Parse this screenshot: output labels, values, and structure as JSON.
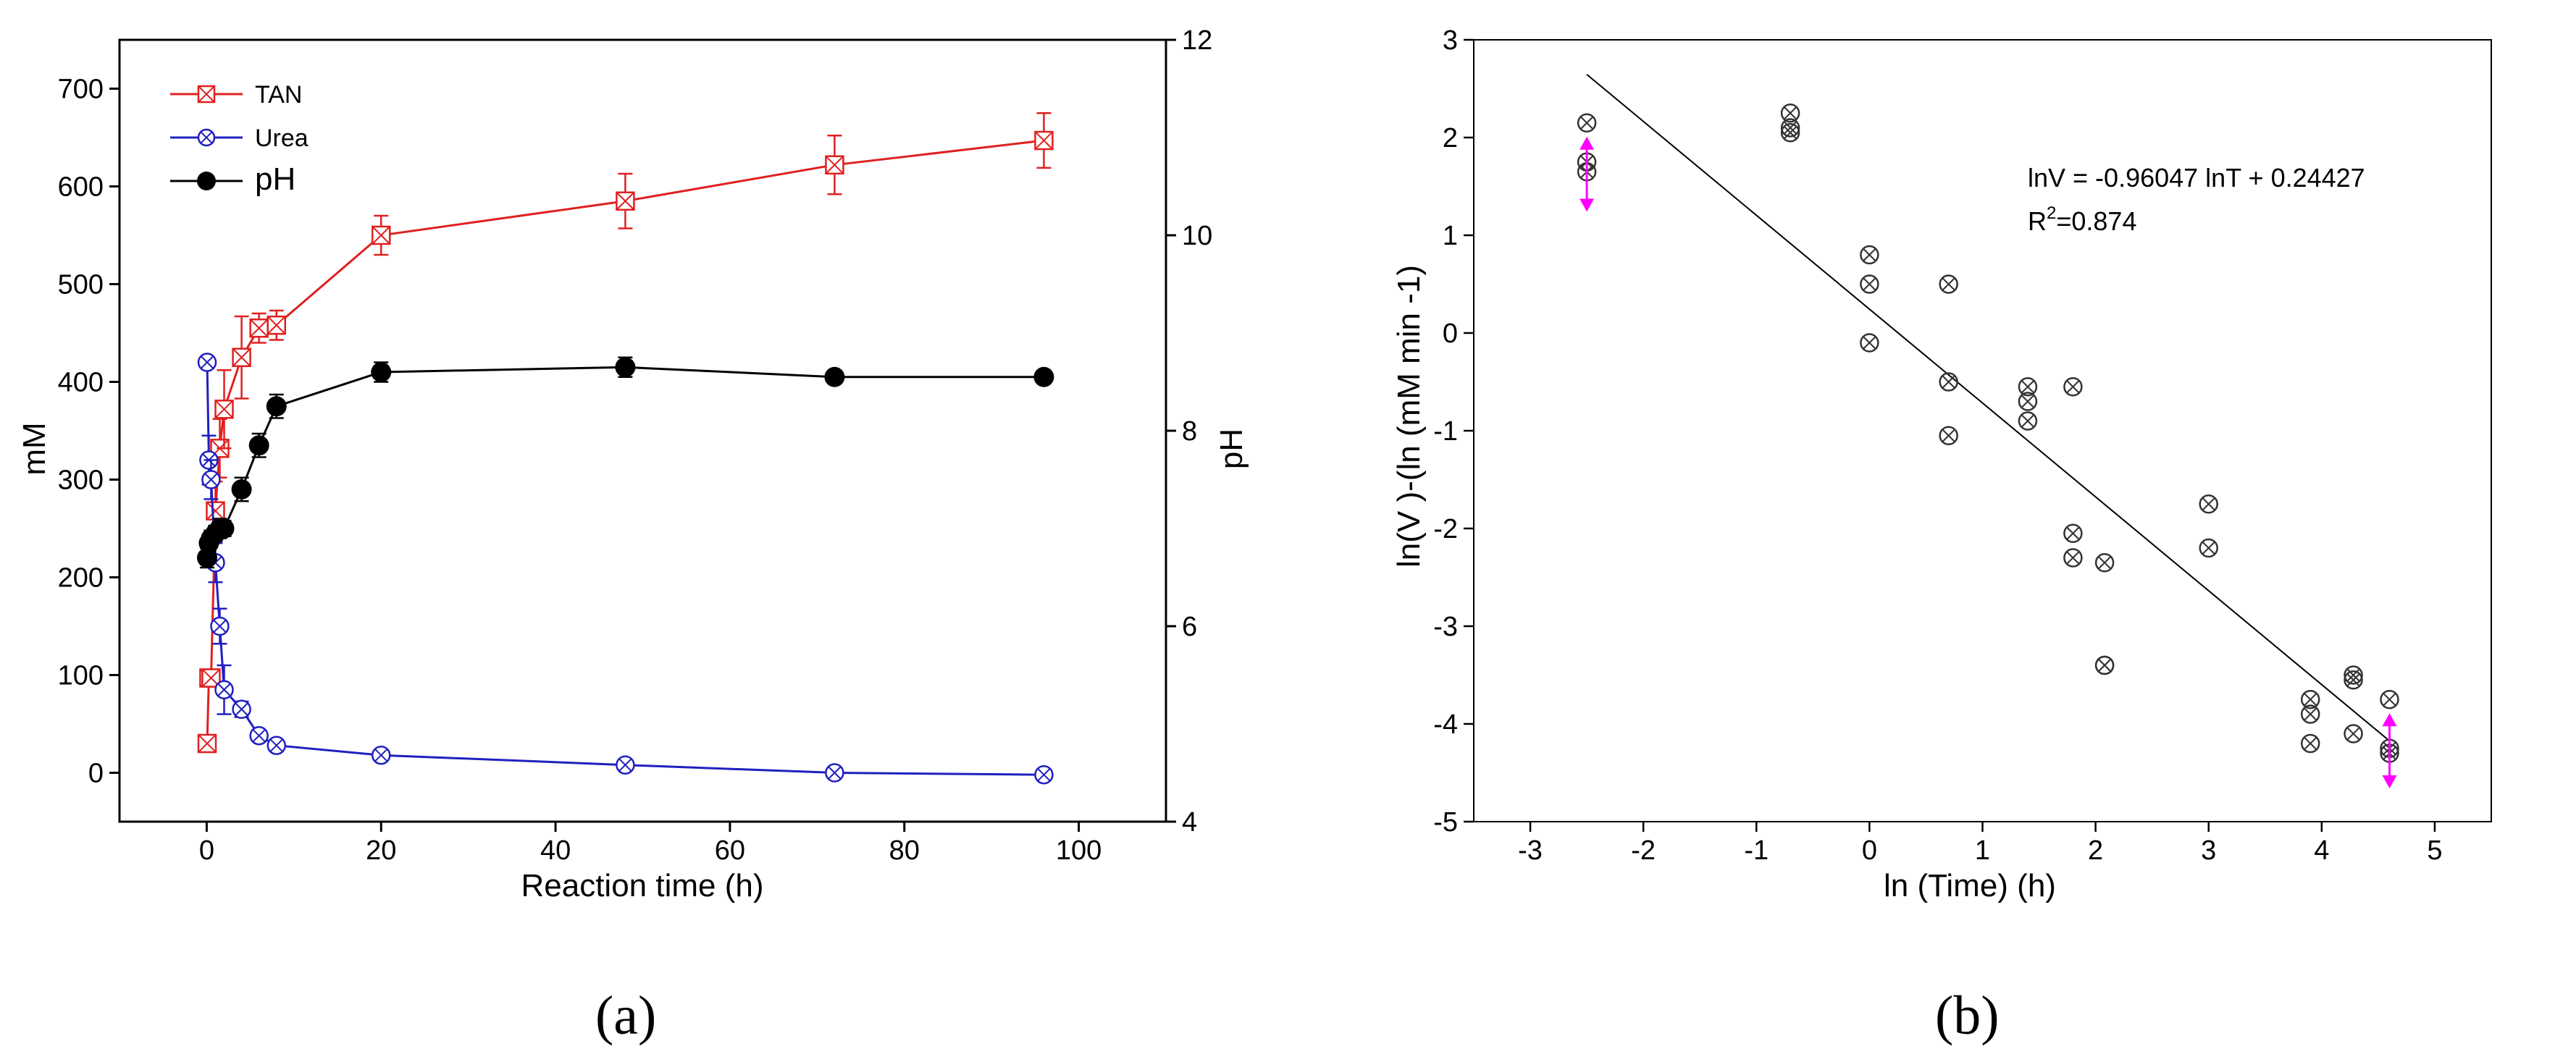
{
  "figure": {
    "panel_a_caption": "(a)",
    "panel_b_caption": "(b)"
  },
  "chart_data": [
    {
      "id": "a",
      "type": "line",
      "xlabel": "Reaction time (h)",
      "ylabel": "mM",
      "y2label": "pH",
      "xlim": [
        -10,
        110
      ],
      "ylim": [
        -50,
        750
      ],
      "y2lim": [
        4,
        12
      ],
      "xticks": [
        0,
        20,
        40,
        60,
        80,
        100
      ],
      "yticks": [
        0,
        100,
        200,
        300,
        400,
        500,
        600,
        700
      ],
      "y2ticks": [
        4,
        6,
        8,
        10,
        12
      ],
      "legend_position": "top-left",
      "series": [
        {
          "name": "TAN",
          "axis": "left",
          "color": "#e02020",
          "marker": "square-x",
          "x": [
            0.05,
            0.25,
            0.5,
            1,
            1.5,
            2,
            4,
            6,
            8,
            20,
            48,
            72,
            96
          ],
          "values": [
            30,
            97,
            97,
            268,
            332,
            372,
            425,
            455,
            458,
            550,
            585,
            622,
            647
          ],
          "errors": [
            0,
            0,
            0,
            30,
            30,
            40,
            42,
            15,
            15,
            20,
            28,
            30,
            28
          ]
        },
        {
          "name": "Urea",
          "axis": "left",
          "color": "#2020c0",
          "marker": "circle-x",
          "x": [
            0.05,
            0.25,
            0.5,
            1,
            1.5,
            2,
            4,
            6,
            8,
            20,
            48,
            72,
            96
          ],
          "values": [
            420,
            320,
            300,
            215,
            150,
            85,
            65,
            38,
            28,
            18,
            8,
            0,
            -2
          ],
          "errors": [
            0,
            25,
            20,
            20,
            18,
            25,
            8,
            6,
            5,
            5,
            4,
            3,
            3
          ]
        },
        {
          "name": "pH",
          "axis": "right",
          "color": "#000000",
          "marker": "filled-circle",
          "x": [
            0.05,
            0.25,
            0.5,
            1,
            1.5,
            2,
            4,
            6,
            8,
            20,
            48,
            72,
            96
          ],
          "values": [
            6.7,
            6.85,
            6.9,
            6.95,
            7.0,
            7.0,
            7.4,
            7.85,
            8.25,
            8.6,
            8.65,
            8.55,
            8.55
          ],
          "errors": [
            0.1,
            0.08,
            0.08,
            0.08,
            0.1,
            0.08,
            0.12,
            0.12,
            0.12,
            0.1,
            0.1,
            0.05,
            0.05
          ]
        }
      ]
    },
    {
      "id": "b",
      "type": "scatter",
      "xlabel": "ln (Time) (h)",
      "ylabel": "ln(V )-(ln (mM min -1)",
      "xlim": [
        -3.5,
        5.5
      ],
      "ylim": [
        -5,
        3
      ],
      "xticks": [
        -3,
        -2,
        -1,
        0,
        1,
        2,
        3,
        4,
        5
      ],
      "yticks": [
        -5,
        -4,
        -3,
        -2,
        -1,
        0,
        1,
        2,
        3
      ],
      "equation": "lnV = -0.96047 lnT + 0.24427",
      "r2_prefix": "R",
      "r2_sup": "2",
      "r2_value": "=0.874",
      "fit": {
        "slope": -0.96047,
        "intercept": 0.24427,
        "x_range": [
          -2.5,
          4.6
        ]
      },
      "points": [
        {
          "x": -2.5,
          "y": 2.15
        },
        {
          "x": -2.5,
          "y": 1.75
        },
        {
          "x": -2.5,
          "y": 1.65
        },
        {
          "x": -0.7,
          "y": 2.25
        },
        {
          "x": -0.7,
          "y": 2.1
        },
        {
          "x": -0.7,
          "y": 2.05
        },
        {
          "x": 0.0,
          "y": 0.8
        },
        {
          "x": 0.0,
          "y": 0.5
        },
        {
          "x": 0.0,
          "y": -0.1
        },
        {
          "x": 0.7,
          "y": 0.5
        },
        {
          "x": 0.7,
          "y": -0.5
        },
        {
          "x": 0.7,
          "y": -1.05
        },
        {
          "x": 1.4,
          "y": -0.55
        },
        {
          "x": 1.4,
          "y": -0.7
        },
        {
          "x": 1.4,
          "y": -0.9
        },
        {
          "x": 1.8,
          "y": -0.55
        },
        {
          "x": 1.8,
          "y": -2.05
        },
        {
          "x": 1.8,
          "y": -2.3
        },
        {
          "x": 2.08,
          "y": -2.35
        },
        {
          "x": 2.08,
          "y": -3.4
        },
        {
          "x": 2.08,
          "y": -3.4
        },
        {
          "x": 3.0,
          "y": -1.75
        },
        {
          "x": 3.0,
          "y": -2.2
        },
        {
          "x": 3.9,
          "y": -3.75
        },
        {
          "x": 3.9,
          "y": -3.9
        },
        {
          "x": 3.9,
          "y": -4.2
        },
        {
          "x": 4.28,
          "y": -3.5
        },
        {
          "x": 4.28,
          "y": -3.55
        },
        {
          "x": 4.28,
          "y": -4.1
        },
        {
          "x": 4.6,
          "y": -3.75
        },
        {
          "x": 4.6,
          "y": -4.25
        },
        {
          "x": 4.6,
          "y": -4.3
        }
      ],
      "error_markers": [
        {
          "x": -2.5,
          "y": 1.65,
          "low": 1.3,
          "high": 1.95
        },
        {
          "x": 4.6,
          "y": -4.25,
          "low": -4.6,
          "high": -3.95
        }
      ],
      "error_marker_color": "#ff00ff"
    }
  ]
}
